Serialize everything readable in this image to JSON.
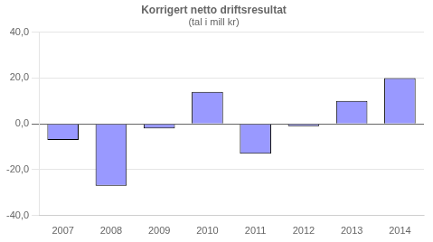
{
  "chart_data": {
    "type": "bar",
    "title": "Korrigert netto driftsresultat",
    "subtitle": "(tal i mill kr)",
    "categories": [
      "2007",
      "2008",
      "2009",
      "2010",
      "2011",
      "2012",
      "2013",
      "2014"
    ],
    "values": [
      -7.0,
      -27.0,
      -2.0,
      14.0,
      -13.0,
      -1.0,
      10.0,
      20.0
    ],
    "color": "#9999FF",
    "ylim": [
      -40,
      40
    ],
    "yticks": [
      {
        "value": -40,
        "label": "-40,0"
      },
      {
        "value": -20,
        "label": "-20,0"
      },
      {
        "value": 0,
        "label": "0,0"
      },
      {
        "value": 20,
        "label": "20,0"
      },
      {
        "value": 40,
        "label": "40,0"
      }
    ],
    "grid": true
  }
}
